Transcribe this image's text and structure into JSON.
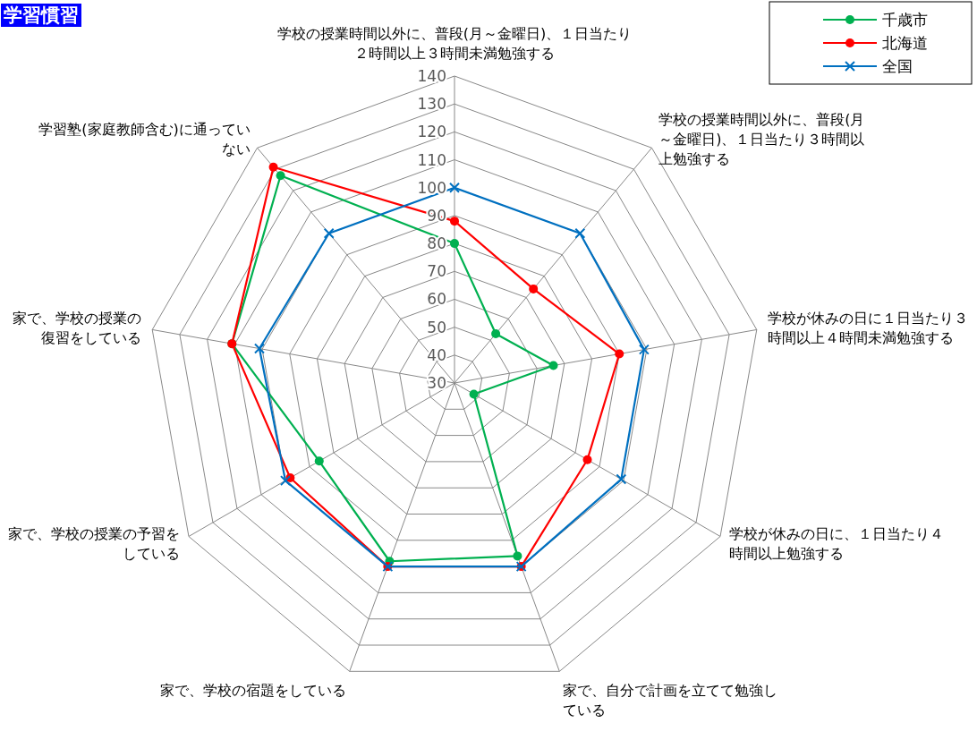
{
  "chart_data": {
    "type": "radar",
    "title": "学習慣習",
    "categories": [
      "学校の授業時間以外に、普段(月～金曜日)、１日当たり２時間以上３時間未満勉強する",
      "学校の授業時間以外に、普段(月～金曜日)、１日当たり３時間以上勉強する",
      "学校が休みの日に１日当たり３時間以上４時間未満勉強する",
      "学校が休みの日に、１日当たり４時間以上勉強する",
      "家で、自分で計画を立てて勉強している",
      "家で、学校の宿題をしている",
      "家で、学校の授業の予習をしている",
      "家で、学校の授業の復習をしている",
      "学習塾(家庭教師含む)に通っていない"
    ],
    "ylim": [
      30,
      140
    ],
    "yticks": [
      30,
      40,
      50,
      60,
      70,
      80,
      90,
      100,
      110,
      120,
      130,
      140
    ],
    "legend": "top right",
    "series": [
      {
        "name": "千歳市",
        "color": "#00b050",
        "marker": "circle",
        "values": [
          80,
          53,
          66,
          38,
          96,
          98,
          86,
          111,
          127
        ]
      },
      {
        "name": "北海道",
        "color": "#ff0000",
        "marker": "circle",
        "values": [
          88,
          74,
          90,
          85,
          100,
          100,
          98,
          111,
          131
        ]
      },
      {
        "name": "全国",
        "color": "#0070c0",
        "marker": "cross",
        "values": [
          100,
          100,
          99,
          99,
          100,
          100,
          100,
          101,
          100
        ]
      }
    ]
  }
}
